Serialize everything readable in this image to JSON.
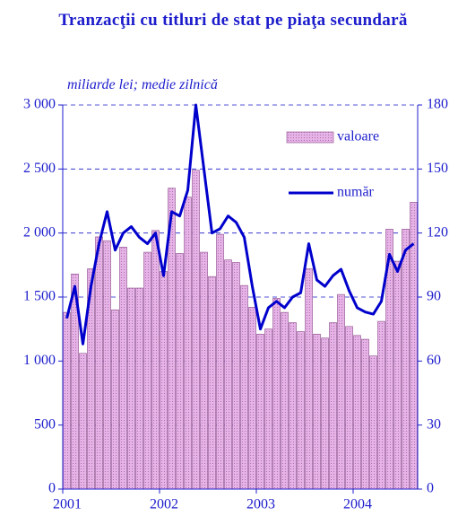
{
  "chart_data": {
    "type": "bar_line",
    "title": "Tranzacţii cu titluri de stat pe piaţa secundară",
    "subtitle": "miliarde lei; medie zilnică",
    "categories": [
      "2001",
      null,
      null,
      null,
      null,
      null,
      null,
      null,
      null,
      null,
      null,
      null,
      "2002",
      null,
      null,
      null,
      null,
      null,
      null,
      null,
      null,
      null,
      null,
      null,
      "2003",
      null,
      null,
      null,
      null,
      null,
      null,
      null,
      null,
      null,
      null,
      null,
      "2004",
      null,
      null,
      null,
      null,
      null,
      null,
      null
    ],
    "series": [
      {
        "name": "valoare",
        "color": "#e6b3e6",
        "type": "bar",
        "values": [
          1380,
          1680,
          1060,
          1720,
          1970,
          1940,
          1400,
          1890,
          1570,
          1570,
          1850,
          2020,
          1700,
          2350,
          1840,
          2280,
          2490,
          1850,
          1660,
          1990,
          1790,
          1770,
          1590,
          1420,
          1210,
          1250,
          1490,
          1380,
          1300,
          1230,
          1720,
          1210,
          1180,
          1300,
          1520,
          1270,
          1200,
          1170,
          1040,
          1310,
          2030,
          1780,
          2030,
          2240
        ]
      },
      {
        "name": "număr",
        "color": "#0000cc",
        "type": "line",
        "axis": "y2",
        "values": [
          80,
          95,
          68,
          95,
          115,
          130,
          112,
          120,
          123,
          118,
          115,
          120,
          100,
          130,
          128,
          140,
          180,
          150,
          120,
          122,
          128,
          125,
          118,
          95,
          75,
          85,
          88,
          85,
          90,
          92,
          115,
          98,
          95,
          100,
          103,
          93,
          85,
          83,
          82,
          88,
          110,
          102,
          112,
          115
        ]
      }
    ],
    "ylim": [
      0,
      3000
    ],
    "yticks": [
      0,
      500,
      {
        "value": 1000,
        "label": "1 000"
      },
      {
        "value": 1500,
        "label": "1 500"
      },
      {
        "value": 2000,
        "label": "2 000"
      },
      {
        "value": 2500,
        "label": "2 500"
      },
      {
        "value": 3000,
        "label": "3 000"
      }
    ],
    "y2lim": [
      0,
      180
    ],
    "y2ticks": [
      0,
      30,
      60,
      90,
      120,
      150,
      180
    ],
    "grid": true
  }
}
